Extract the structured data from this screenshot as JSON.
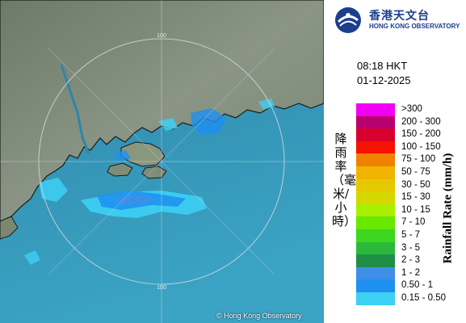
{
  "organization": {
    "name_zh": "香港天文台",
    "name_en": "HONG KONG OBSERVATORY",
    "logo_icon": "hko-logo-icon"
  },
  "observation": {
    "time": "08:18 HKT",
    "date": "01-12-2025"
  },
  "map": {
    "range_label": "100",
    "copyright": "© Hong Kong Observatory"
  },
  "legend": {
    "title_zh": "降雨率（毫米/小時）",
    "title_en": "Rainfall Rate (mm/h)",
    "items": [
      {
        "label": ">300",
        "color": "#f200f2"
      },
      {
        "label": "200 - 300",
        "color": "#b8006e"
      },
      {
        "label": "150 - 200",
        "color": "#d8002e"
      },
      {
        "label": "100 - 150",
        "color": "#f51200"
      },
      {
        "label": "75 - 100",
        "color": "#ef8200"
      },
      {
        "label": "50 - 75",
        "color": "#f0b400"
      },
      {
        "label": "30 - 50",
        "color": "#e5c800"
      },
      {
        "label": "15 - 30",
        "color": "#d6d600"
      },
      {
        "label": "10 - 15",
        "color": "#a8f000"
      },
      {
        "label": "7 - 10",
        "color": "#69e800"
      },
      {
        "label": "5 - 7",
        "color": "#3fd61e"
      },
      {
        "label": "3 - 5",
        "color": "#2cb83a"
      },
      {
        "label": "2 - 3",
        "color": "#1f8f48"
      },
      {
        "label": "1 - 2",
        "color": "#3f8fe8"
      },
      {
        "label": "0.50 - 1",
        "color": "#1e90f0"
      },
      {
        "label": "0.15 - 0.50",
        "color": "#3cd0f5"
      }
    ]
  }
}
